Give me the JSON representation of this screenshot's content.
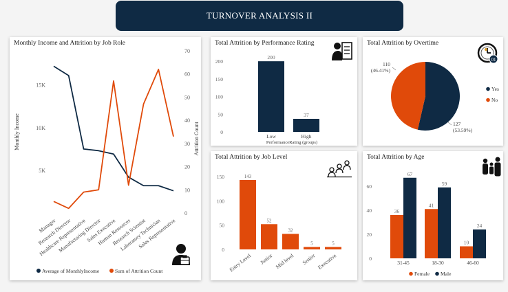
{
  "header": {
    "title": "TURNOVER ANALYSIS II"
  },
  "colors": {
    "navy": "#0f2a44",
    "orange": "#e04a0a",
    "panel": "#ffffff"
  },
  "icons": {
    "job_role": "person-briefcase-icon",
    "performance": "person-clipboard-icon",
    "overtime": "clock-badge-icon",
    "job_level": "people-hierarchy-icon",
    "age": "family-icon"
  },
  "chart_data": [
    {
      "id": "job_role",
      "type": "line",
      "title": "Monthly Income and Attrition by Job Role",
      "categories": [
        "Manager",
        "Research Director",
        "Healthcare Representative",
        "Manufacturing Director",
        "Sales Executive",
        "Human Resources",
        "Research Scientist",
        "Laboratory Technician",
        "Sales Representative"
      ],
      "series": [
        {
          "name": "Average of MonthlyIncome",
          "axis": "left",
          "color": "#0f2a44",
          "values": [
            17200,
            16100,
            7500,
            7300,
            6900,
            4200,
            3200,
            3200,
            2600
          ]
        },
        {
          "name": "Sum of Attrition Count",
          "axis": "right",
          "color": "#e04a0a",
          "values": [
            5,
            2,
            9,
            10,
            57,
            12,
            47,
            62,
            33
          ]
        }
      ],
      "ylabel": "Monthly Income",
      "y2label": "Attrition Count",
      "yticks": [
        "5K",
        "10K",
        "15K"
      ],
      "y2ticks": [
        "0",
        "10",
        "20",
        "30",
        "40",
        "50",
        "60",
        "70"
      ],
      "ylim": [
        0,
        19000
      ],
      "y2lim": [
        0,
        70
      ],
      "legend_position": "bottom"
    },
    {
      "id": "performance",
      "type": "bar",
      "title": "Total Attrition by Performance Rating",
      "categories": [
        "Low",
        "High"
      ],
      "values": [
        200,
        37
      ],
      "xlabel": "PerformanceRating (groups)",
      "yticks": [
        "0",
        "50",
        "100",
        "150",
        "200"
      ],
      "ylim": [
        0,
        210
      ],
      "color": "#0f2a44"
    },
    {
      "id": "overtime",
      "type": "pie",
      "title": "Total Attrition by Overtime",
      "slices": [
        {
          "name": "Yes",
          "value": 127,
          "label": "127",
          "pct": "(53.59%)",
          "color": "#0f2a44"
        },
        {
          "name": "No",
          "value": 110,
          "label": "110",
          "pct": "(46.41%)",
          "color": "#e04a0a"
        }
      ],
      "legend_position": "right"
    },
    {
      "id": "job_level",
      "type": "bar",
      "title": "Total Attrition by Job Level",
      "categories": [
        "Entry Level",
        "Junior",
        "Mid level",
        "Senior",
        "Executive"
      ],
      "values": [
        143,
        52,
        32,
        5,
        5
      ],
      "yticks": [
        "0",
        "50",
        "100",
        "150"
      ],
      "ylim": [
        0,
        160
      ],
      "color": "#e04a0a"
    },
    {
      "id": "age",
      "type": "bar",
      "title": "Total Attrition by Age",
      "categories": [
        "31-45",
        "18-30",
        "46-60"
      ],
      "series": [
        {
          "name": "Female",
          "color": "#e04a0a",
          "values": [
            36,
            41,
            10
          ]
        },
        {
          "name": "Male",
          "color": "#0f2a44",
          "values": [
            67,
            59,
            24
          ]
        }
      ],
      "yticks": [
        "0",
        "20",
        "40",
        "60"
      ],
      "ylim": [
        0,
        72
      ],
      "legend_position": "bottom"
    }
  ]
}
